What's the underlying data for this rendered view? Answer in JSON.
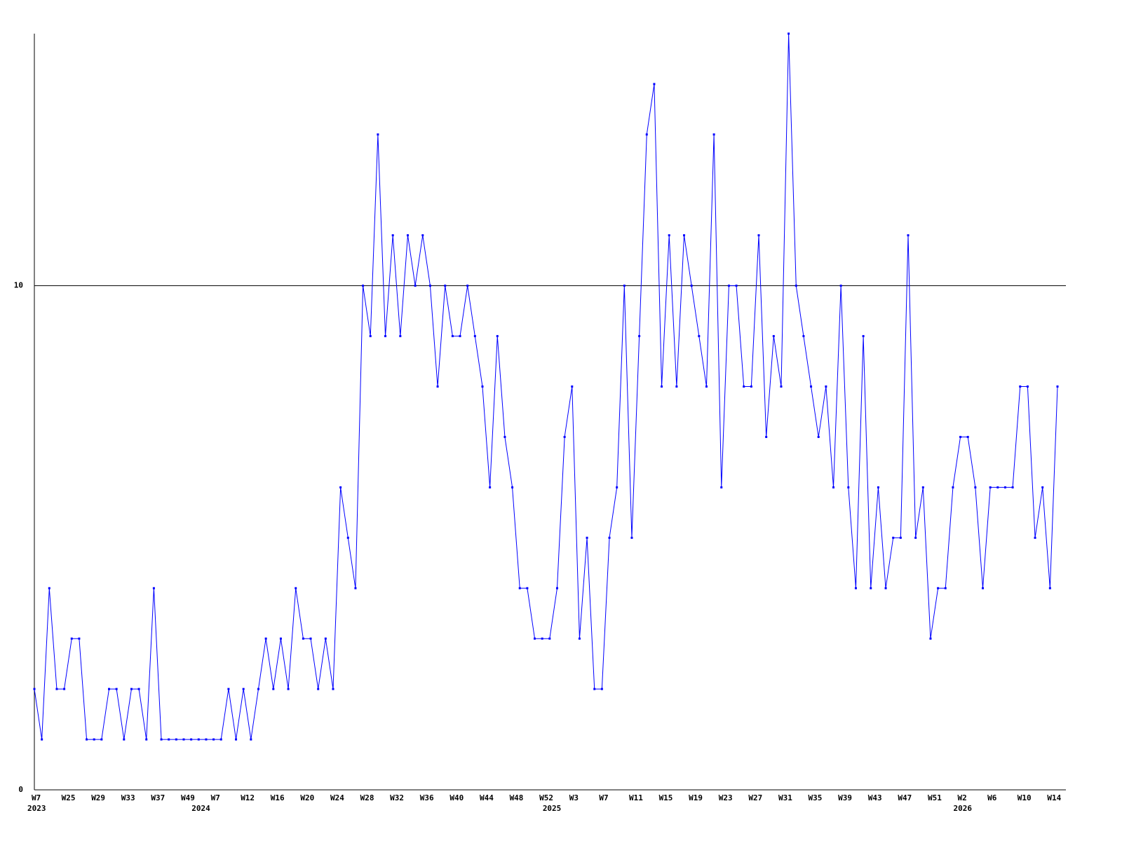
{
  "chart_data": {
    "type": "line",
    "categories": [
      "W7",
      null,
      null,
      null,
      "W25",
      null,
      null,
      null,
      "W29",
      null,
      null,
      null,
      "W33",
      null,
      null,
      null,
      "W37",
      null,
      null,
      null,
      "W49",
      null,
      null,
      null,
      "W7",
      null,
      null,
      null,
      "W12",
      null,
      null,
      null,
      "W16",
      null,
      null,
      null,
      "W20",
      null,
      null,
      null,
      "W24",
      null,
      null,
      null,
      "W28",
      null,
      null,
      null,
      "W32",
      null,
      null,
      null,
      "W36",
      null,
      null,
      null,
      "W40",
      null,
      null,
      null,
      "W44",
      null,
      null,
      null,
      "W48",
      null,
      null,
      null,
      "W52",
      null,
      null,
      null,
      "W3",
      null,
      null,
      null,
      "W7",
      null,
      null,
      null,
      "W11",
      null,
      null,
      null,
      "W15",
      null,
      null,
      null,
      "W19",
      null,
      null,
      null,
      "W23",
      null,
      null,
      null,
      "W27",
      null,
      null,
      null,
      "W31",
      null,
      null,
      null,
      "W35",
      null,
      null,
      null,
      "W39",
      null,
      null,
      null,
      "W43",
      null,
      null,
      null,
      "W47",
      null,
      null,
      null,
      "W51",
      null,
      null,
      null,
      "W2",
      null,
      null,
      null,
      "W6",
      null,
      null,
      null,
      "W10",
      null,
      null,
      null,
      "W14",
      null
    ],
    "years": [
      "2023",
      null,
      null,
      null,
      null,
      null,
      null,
      null,
      null,
      null,
      null,
      null,
      null,
      null,
      null,
      null,
      null,
      null,
      null,
      null,
      null,
      null,
      "2024",
      null,
      null,
      null,
      null,
      null,
      null,
      null,
      null,
      null,
      null,
      null,
      null,
      null,
      null,
      null,
      null,
      null,
      null,
      null,
      null,
      null,
      null,
      null,
      null,
      null,
      null,
      null,
      null,
      null,
      null,
      null,
      null,
      null,
      null,
      null,
      null,
      null,
      null,
      null,
      null,
      null,
      null,
      null,
      null,
      null,
      null,
      "2025",
      null,
      null,
      null,
      null,
      null,
      null,
      null,
      null,
      null,
      null,
      null,
      null,
      null,
      null,
      null,
      null,
      null,
      null,
      null,
      null,
      null,
      null,
      null,
      null,
      null,
      null,
      null,
      null,
      null,
      null,
      null,
      null,
      null,
      null,
      null,
      null,
      null,
      null,
      null,
      null,
      null,
      null,
      null,
      null,
      null,
      null,
      null,
      null,
      null,
      null,
      null,
      null,
      null,
      null,
      "2026",
      null,
      null,
      null,
      null,
      null,
      null,
      null,
      null,
      null,
      null,
      null,
      null,
      null,
      null,
      null
    ],
    "series": [
      {
        "color": "#0000ff",
        "values": [
          2,
          1,
          4,
          2,
          2,
          3,
          3,
          1,
          1,
          1,
          2,
          2,
          1,
          2,
          2,
          1,
          4,
          1,
          1,
          1,
          1,
          1,
          1,
          1,
          1,
          1,
          2,
          1,
          2,
          1,
          2,
          3,
          2,
          3,
          2,
          4,
          3,
          3,
          2,
          3,
          2,
          6,
          5,
          4,
          10,
          9,
          13,
          9,
          11,
          9,
          11,
          10,
          11,
          10,
          8,
          10,
          9,
          9,
          10,
          9,
          8,
          6,
          9,
          7,
          6,
          4,
          4,
          3,
          3,
          3,
          4,
          7,
          8,
          3,
          5,
          2,
          2,
          5,
          6,
          10,
          5,
          9,
          13,
          14,
          8,
          11,
          8,
          11,
          10,
          9,
          8,
          13,
          6,
          10,
          10,
          8,
          8,
          11,
          7,
          9,
          8,
          15,
          10,
          9,
          8,
          7,
          8,
          6,
          10,
          6,
          4,
          9,
          4,
          6,
          4,
          5,
          5,
          11,
          5,
          6,
          3,
          4,
          4,
          6,
          7,
          7,
          6,
          4,
          6,
          6,
          6,
          6,
          8,
          8,
          5,
          6,
          4,
          8
        ]
      }
    ],
    "ylim": [
      0,
      15
    ],
    "yticks": [
      0,
      10
    ],
    "grid": true
  }
}
